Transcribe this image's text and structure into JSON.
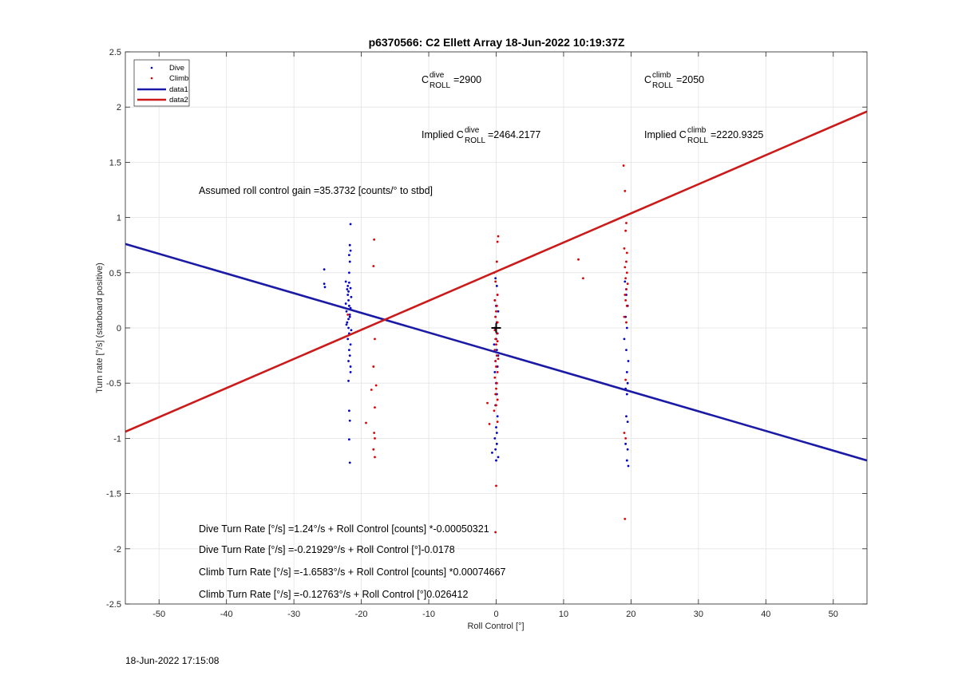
{
  "chart_data": {
    "type": "scatter",
    "title": "p6370566: C2 Ellett Array 18-Jun-2022 10:19:37Z",
    "xlabel": "Roll Control [°]",
    "ylabel": "Turn rate [°/s] (starboard positive)",
    "xlim": [
      -55,
      55
    ],
    "ylim": [
      -2.5,
      2.5
    ],
    "xticks": [
      "-50",
      "-40",
      "-30",
      "-20",
      "-10",
      "0",
      "10",
      "20",
      "30",
      "40",
      "50"
    ],
    "yticks": [
      "-2.5",
      "-2",
      "-1.5",
      "-1",
      "-0.5",
      "0",
      "0.5",
      "1",
      "1.5",
      "2",
      "2.5"
    ],
    "grid": true,
    "legend_placement": "top-left",
    "legend": [
      "Dive",
      "Climb",
      "data1",
      "data2"
    ],
    "colors": {
      "dive": "#0000cc",
      "climb": "#dd0000",
      "data1": "#1a1aa6",
      "data2": "#cc1a1a",
      "origin_marker": "#000000"
    },
    "series": [
      {
        "name": "Dive",
        "style": "points",
        "points": [
          [
            -25.5,
            0.53
          ],
          [
            -25.5,
            0.4
          ],
          [
            -25.4,
            0.37
          ],
          [
            -22.3,
            0.42
          ],
          [
            -22.1,
            0.35
          ],
          [
            -22.0,
            0.3
          ],
          [
            -21.9,
            0.25
          ],
          [
            -21.8,
            0.2
          ],
          [
            -22.2,
            0.15
          ],
          [
            -21.7,
            0.1
          ],
          [
            -22.1,
            0.05
          ],
          [
            -21.9,
            0.0
          ],
          [
            -21.8,
            -0.05
          ],
          [
            -22.0,
            -0.1
          ],
          [
            -21.6,
            -0.15
          ],
          [
            -21.9,
            0.33
          ],
          [
            -21.5,
            0.28
          ],
          [
            -22.3,
            0.22
          ],
          [
            -21.6,
            0.18
          ],
          [
            -21.7,
            0.12
          ],
          [
            -21.9,
            0.08
          ],
          [
            -22.0,
            0.38
          ],
          [
            -21.8,
            0.41
          ],
          [
            -21.6,
            0.36
          ],
          [
            -22.2,
            0.03
          ],
          [
            -21.5,
            -0.02
          ],
          [
            -21.8,
            -0.2
          ],
          [
            -21.7,
            -0.25
          ],
          [
            -21.9,
            -0.3
          ],
          [
            -21.6,
            -0.35
          ],
          [
            -21.8,
            0.5
          ],
          [
            -21.7,
            0.6
          ],
          [
            -21.6,
            0.7
          ],
          [
            -21.7,
            0.75
          ],
          [
            -21.6,
            0.94
          ],
          [
            -21.8,
            0.66
          ],
          [
            -21.9,
            -0.48
          ],
          [
            -21.8,
            -0.75
          ],
          [
            -21.7,
            -0.84
          ],
          [
            -21.8,
            -1.01
          ],
          [
            -21.7,
            -1.22
          ],
          [
            -21.6,
            -0.4
          ],
          [
            -0.3,
            0.5
          ],
          [
            -0.1,
            0.45
          ],
          [
            0.1,
            0.38
          ],
          [
            0.2,
            0.3
          ],
          [
            -0.2,
            0.25
          ],
          [
            0.0,
            0.2
          ],
          [
            0.3,
            0.15
          ],
          [
            -0.1,
            0.1
          ],
          [
            0.1,
            0.05
          ],
          [
            -0.2,
            0.0
          ],
          [
            0.2,
            -0.05
          ],
          [
            0.0,
            -0.1
          ],
          [
            -0.3,
            -0.15
          ],
          [
            0.1,
            -0.2
          ],
          [
            0.3,
            -0.25
          ],
          [
            -0.1,
            -0.3
          ],
          [
            0.2,
            -0.35
          ],
          [
            -0.2,
            -0.4
          ],
          [
            0.0,
            -0.5
          ],
          [
            0.1,
            -0.6
          ],
          [
            -0.1,
            -0.7
          ],
          [
            0.2,
            -0.8
          ],
          [
            0.0,
            -0.9
          ],
          [
            -0.2,
            -1.0
          ],
          [
            0.1,
            -1.05
          ],
          [
            -0.1,
            -1.1
          ],
          [
            -0.6,
            -1.13
          ],
          [
            0.3,
            -1.17
          ],
          [
            0.0,
            -1.2
          ],
          [
            0.1,
            -0.95
          ],
          [
            19.1,
            0.42
          ],
          [
            19.3,
            0.3
          ],
          [
            19.5,
            0.2
          ],
          [
            19.2,
            0.1
          ],
          [
            19.4,
            0.0
          ],
          [
            19.0,
            -0.1
          ],
          [
            19.3,
            -0.2
          ],
          [
            19.6,
            -0.3
          ],
          [
            19.4,
            -0.4
          ],
          [
            19.5,
            -0.5
          ],
          [
            19.2,
            -0.55
          ],
          [
            19.4,
            -0.6
          ],
          [
            19.3,
            -0.8
          ],
          [
            19.5,
            -0.85
          ],
          [
            19.2,
            -1.05
          ],
          [
            19.5,
            -1.1
          ],
          [
            19.4,
            -1.2
          ],
          [
            19.6,
            -1.25
          ],
          [
            19.3,
            0.35
          ]
        ]
      },
      {
        "name": "Climb",
        "style": "points",
        "points": [
          [
            -18.1,
            0.8
          ],
          [
            -18.2,
            0.56
          ],
          [
            -18.0,
            -0.1
          ],
          [
            -18.2,
            -0.35
          ],
          [
            -18.5,
            -0.56
          ],
          [
            -17.8,
            -0.52
          ],
          [
            -18.0,
            -0.72
          ],
          [
            -19.3,
            -0.86
          ],
          [
            -18.1,
            -0.95
          ],
          [
            -18.0,
            -1.0
          ],
          [
            -18.2,
            -1.1
          ],
          [
            -18.0,
            -1.17
          ],
          [
            -22.0,
            0.12
          ],
          [
            0.3,
            0.83
          ],
          [
            0.2,
            0.78
          ],
          [
            0.1,
            0.6
          ],
          [
            -0.1,
            0.42
          ],
          [
            0.2,
            0.3
          ],
          [
            -0.2,
            0.25
          ],
          [
            0.1,
            0.2
          ],
          [
            0.0,
            0.15
          ],
          [
            -0.1,
            0.1
          ],
          [
            0.2,
            0.05
          ],
          [
            0.0,
            0.0
          ],
          [
            -0.2,
            -0.02
          ],
          [
            0.1,
            -0.05
          ],
          [
            -0.1,
            -0.1
          ],
          [
            0.2,
            -0.12
          ],
          [
            0.0,
            -0.15
          ],
          [
            -0.2,
            -0.2
          ],
          [
            0.1,
            -0.25
          ],
          [
            0.3,
            -0.28
          ],
          [
            -0.1,
            -0.3
          ],
          [
            0.0,
            -0.35
          ],
          [
            0.2,
            -0.4
          ],
          [
            -0.2,
            -0.45
          ],
          [
            0.1,
            -0.5
          ],
          [
            0.0,
            -0.55
          ],
          [
            -0.1,
            -0.6
          ],
          [
            0.2,
            -0.65
          ],
          [
            0.0,
            -0.7
          ],
          [
            -0.3,
            -0.75
          ],
          [
            -1.3,
            -0.68
          ],
          [
            -1.0,
            -0.87
          ],
          [
            0.2,
            -0.85
          ],
          [
            0.0,
            -1.43
          ],
          [
            -0.1,
            -1.85
          ],
          [
            12.2,
            0.62
          ],
          [
            12.9,
            0.45
          ],
          [
            18.9,
            1.47
          ],
          [
            19.1,
            1.24
          ],
          [
            19.3,
            0.95
          ],
          [
            19.2,
            0.88
          ],
          [
            19.0,
            0.72
          ],
          [
            19.4,
            0.68
          ],
          [
            19.3,
            0.6
          ],
          [
            19.1,
            0.55
          ],
          [
            19.4,
            0.5
          ],
          [
            19.2,
            0.45
          ],
          [
            19.5,
            0.4
          ],
          [
            19.3,
            0.35
          ],
          [
            19.1,
            0.3
          ],
          [
            19.2,
            0.25
          ],
          [
            19.4,
            0.2
          ],
          [
            19.0,
            0.1
          ],
          [
            19.3,
            0.05
          ],
          [
            19.2,
            -0.47
          ],
          [
            19.0,
            -0.95
          ],
          [
            19.1,
            -1.73
          ],
          [
            19.2,
            -1.0
          ]
        ]
      },
      {
        "name": "data1",
        "style": "line",
        "points": [
          [
            -55,
            0.76
          ],
          [
            55,
            -1.2
          ]
        ]
      },
      {
        "name": "data2",
        "style": "line",
        "points": [
          [
            -55,
            -0.94
          ],
          [
            55,
            1.96
          ]
        ]
      }
    ],
    "origin_marker": {
      "x": 0,
      "y": 0,
      "symbol": "+"
    },
    "annotations": {
      "c_dive": {
        "base": "C",
        "sup": "dive",
        "sub": "ROLL",
        "value": "=2900"
      },
      "c_climb": {
        "base": "C",
        "sup": "climb",
        "sub": "ROLL",
        "value": "=2050"
      },
      "implied_dive": {
        "prefix": "Implied C",
        "sup": "dive",
        "sub": "ROLL",
        "value": "=2464.2177"
      },
      "implied_climb": {
        "prefix": "Implied C",
        "sup": "climb",
        "sub": "ROLL",
        "value": "=2220.9325"
      },
      "gain": "Assumed roll control gain =35.3732 [counts/° to stbd]",
      "fit_lines": [
        "Dive Turn Rate [°/s] =1.24°/s + Roll Control [counts] *-0.00050321",
        "Dive Turn Rate [°/s] =-0.21929°/s + Roll Control [°]-0.0178",
        "Climb Turn Rate [°/s] =-1.6583°/s + Roll Control [counts] *0.00074667",
        "Climb Turn Rate [°/s] =-0.12763°/s + Roll Control [°]0.026412"
      ]
    }
  },
  "footer": {
    "timestamp": "18-Jun-2022 17:15:08"
  }
}
